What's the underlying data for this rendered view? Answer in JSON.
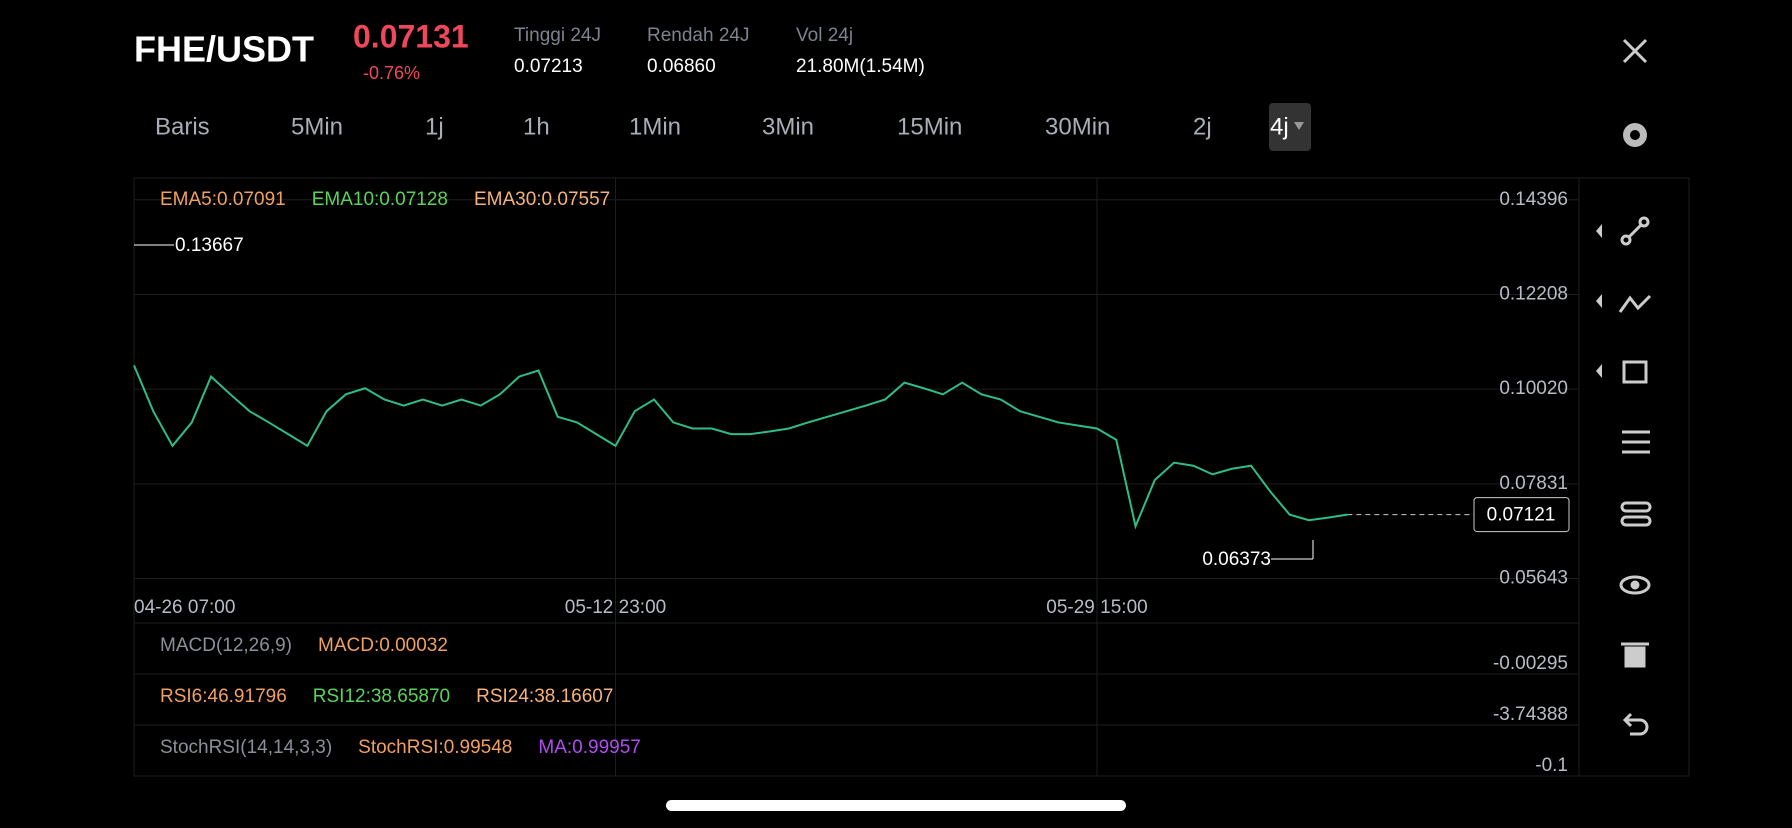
{
  "header": {
    "pair": "FHE/USDT",
    "price": "0.07131",
    "change": "-0.76%",
    "stats": [
      {
        "label": "Tinggi 24J",
        "value": "0.07213"
      },
      {
        "label": "Rendah 24J",
        "value": "0.06860"
      },
      {
        "label": "Vol 24j",
        "value": "21.80M(1.54M)"
      }
    ]
  },
  "intervals": {
    "items": [
      "Baris",
      "5Min",
      "1j",
      "1h",
      "1Min",
      "3Min",
      "15Min",
      "30Min",
      "2j",
      "4j"
    ],
    "selected": "4j"
  },
  "chart_data": {
    "type": "line",
    "color": "#2ebd85",
    "legend": [
      {
        "text": "EMA5:0.07091",
        "color": "#f0a060"
      },
      {
        "text": "EMA10:0.07128",
        "color": "#5ad35a"
      },
      {
        "text": "EMA30:0.07557",
        "color": "#f5b27a"
      }
    ],
    "max_label": "0.13667",
    "min_label": "0.06373",
    "last_label": "0.07121",
    "categories": [
      "04-26 07:00",
      null,
      null,
      null,
      null,
      null,
      null,
      null,
      null,
      null,
      null,
      null,
      null,
      null,
      null,
      null,
      null,
      null,
      null,
      null,
      null,
      null,
      null,
      null,
      null,
      "05-12 23:00",
      null,
      null,
      null,
      null,
      null,
      null,
      null,
      null,
      null,
      null,
      null,
      null,
      null,
      null,
      null,
      null,
      null,
      null,
      null,
      null,
      null,
      null,
      null,
      null,
      "05-29 15:00",
      null,
      null,
      null,
      null,
      null,
      null,
      null,
      null,
      null,
      null,
      null,
      null,
      null
    ],
    "values": [
      0.1057,
      0.0951,
      0.0871,
      0.0925,
      0.1031,
      0.099,
      0.0951,
      0.0925,
      0.0898,
      0.0871,
      0.0951,
      0.099,
      0.1004,
      0.0978,
      0.0964,
      0.0978,
      0.0964,
      0.0978,
      0.0964,
      0.099,
      0.1031,
      0.1045,
      0.0938,
      0.0925,
      0.0898,
      0.0871,
      0.0951,
      0.0978,
      0.0925,
      0.0911,
      0.0911,
      0.0898,
      0.0898,
      0.0904,
      0.0911,
      0.0925,
      0.0938,
      0.0951,
      0.0964,
      0.0978,
      0.1017,
      0.1004,
      0.099,
      0.1017,
      0.099,
      0.0978,
      0.0951,
      0.0938,
      0.0925,
      0.0918,
      0.0911,
      0.0885,
      0.0685,
      0.0792,
      0.0832,
      0.0825,
      0.0805,
      0.0818,
      0.0825,
      0.0765,
      0.0712,
      0.0699,
      0.0705,
      0.0712
    ],
    "ylim": [
      0.054,
      0.149
    ],
    "yticks": [
      0.14396,
      0.12208,
      {
        "value": 0.1002,
        "label": "0.10020"
      },
      0.07831,
      0.05643
    ],
    "grid": true,
    "panels": [
      {
        "texts": [
          {
            "text": "MACD(12,26,9)",
            "color": "#8a8f99"
          },
          {
            "text": "MACD:0.00032",
            "color": "#f0a060"
          }
        ],
        "axis_label": "-0.00295"
      },
      {
        "texts": [
          {
            "text": "RSI6:46.91796",
            "color": "#f0a060"
          },
          {
            "text": "RSI12:38.65870",
            "color": "#5ad35a"
          },
          {
            "text": "RSI24:38.16607",
            "color": "#f5b27a"
          }
        ],
        "axis_label": "-3.74388"
      },
      {
        "texts": [
          {
            "text": "StochRSI(14,14,3,3)",
            "color": "#8a8f99"
          },
          {
            "text": "StochRSI:0.99548",
            "color": "#f0a060"
          },
          {
            "text": "MA:0.99957",
            "color": "#b04cf0"
          }
        ],
        "axis_label": "-0.1"
      }
    ]
  }
}
